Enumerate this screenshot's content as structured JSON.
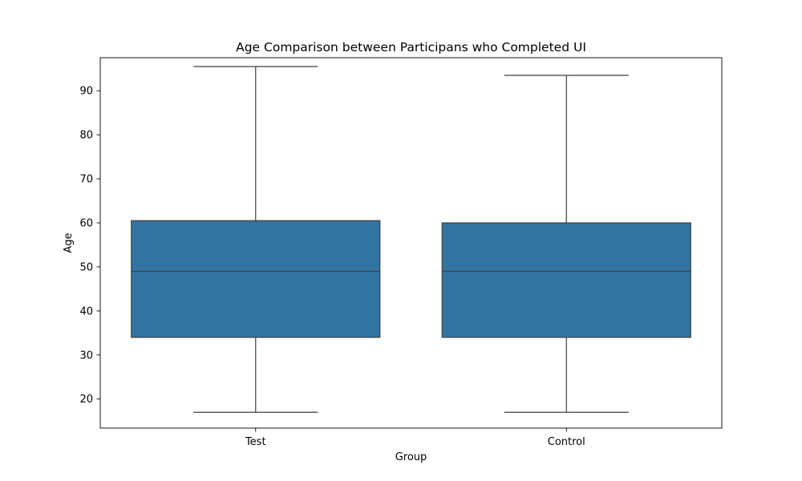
{
  "chart_data": {
    "type": "box",
    "title": "Age Comparison between Participans who Completed UI",
    "xlabel": "Group",
    "ylabel": "Age",
    "categories": [
      "Test",
      "Control"
    ],
    "boxes": [
      {
        "category": "Test",
        "whisker_low": 17,
        "q1": 34,
        "median": 49,
        "q3": 60.5,
        "whisker_high": 95.5
      },
      {
        "category": "Control",
        "whisker_low": 17,
        "q1": 34,
        "median": 49,
        "q3": 60,
        "whisker_high": 93.5
      }
    ],
    "yticks": [
      20,
      30,
      40,
      50,
      60,
      70,
      80,
      90
    ],
    "ylim": [
      13.4,
      97.5
    ],
    "grid": false,
    "box_color": "#3274a1",
    "line_color": "#3f3f3f"
  }
}
